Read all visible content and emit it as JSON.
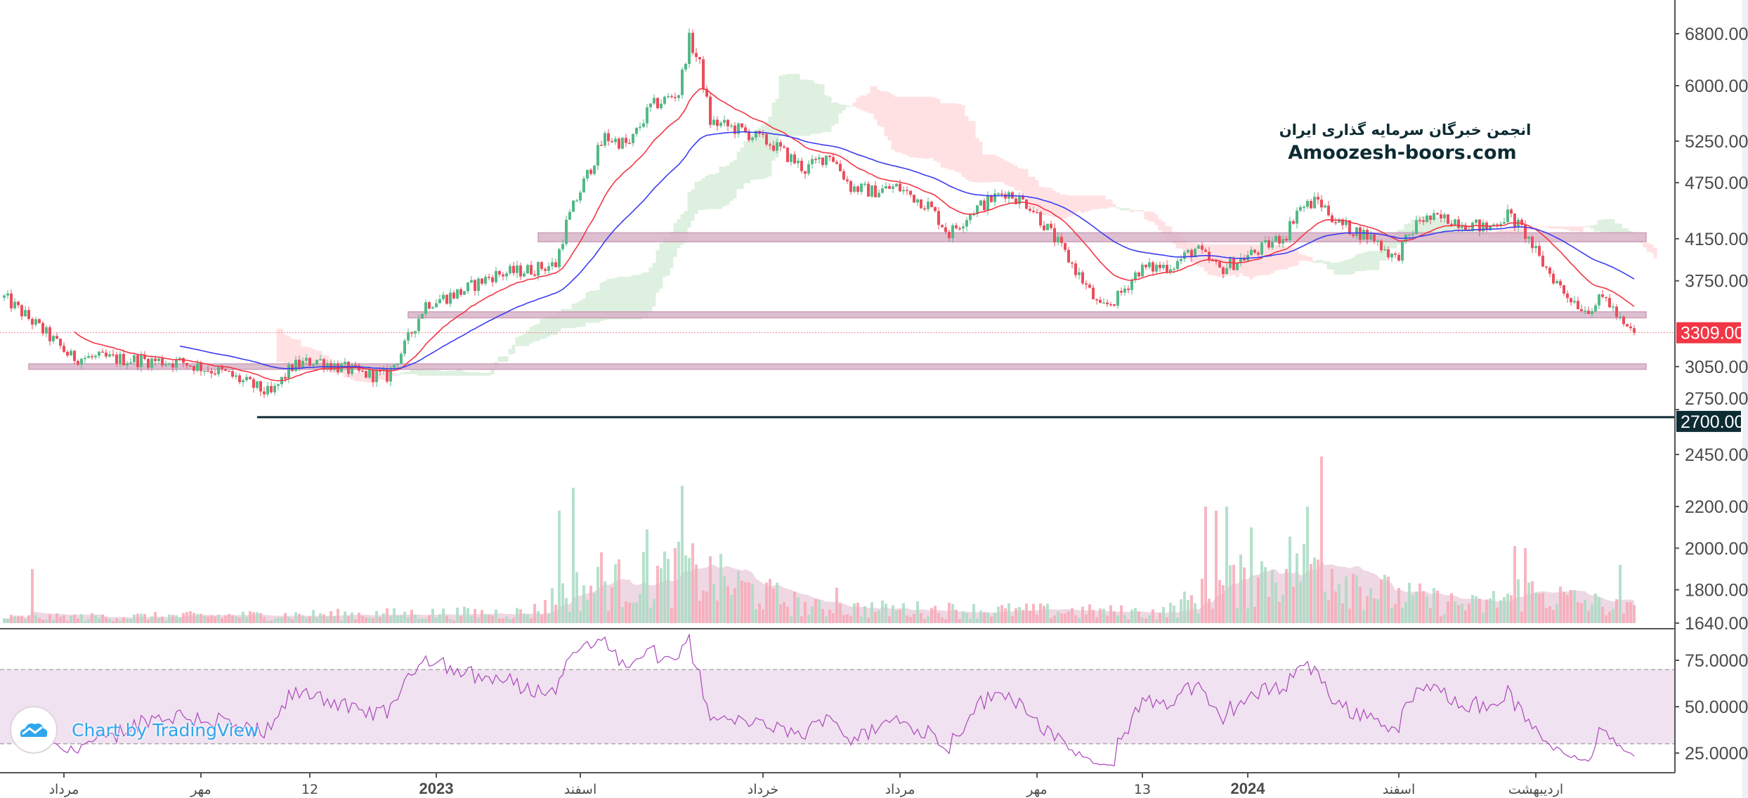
{
  "chart_data": {
    "type": "candlestick",
    "title": "",
    "scale": "log",
    "bar_count": 465,
    "price_path": [
      [
        0,
        3600
      ],
      [
        10,
        3350
      ],
      [
        19,
        3120
      ],
      [
        38,
        3100
      ],
      [
        51,
        3080
      ],
      [
        63,
        3000
      ],
      [
        76,
        2850
      ],
      [
        82,
        3050
      ],
      [
        89,
        3100
      ],
      [
        101,
        3000
      ],
      [
        109,
        2980
      ],
      [
        114,
        3200
      ],
      [
        120,
        3550
      ],
      [
        130,
        3650
      ],
      [
        139,
        3800
      ],
      [
        149,
        3850
      ],
      [
        157,
        3900
      ],
      [
        160,
        4300
      ],
      [
        165,
        4750
      ],
      [
        171,
        5300
      ],
      [
        178,
        5200
      ],
      [
        184,
        5700
      ],
      [
        192,
        5900
      ],
      [
        195,
        6700
      ],
      [
        198,
        6300
      ],
      [
        201,
        5500
      ],
      [
        209,
        5400
      ],
      [
        219,
        5200
      ],
      [
        228,
        4900
      ],
      [
        235,
        5100
      ],
      [
        241,
        4700
      ],
      [
        247,
        4650
      ],
      [
        254,
        4700
      ],
      [
        263,
        4500
      ],
      [
        269,
        4200
      ],
      [
        276,
        4450
      ],
      [
        285,
        4650
      ],
      [
        292,
        4500
      ],
      [
        298,
        4200
      ],
      [
        304,
        3900
      ],
      [
        312,
        3500
      ],
      [
        317,
        3600
      ],
      [
        323,
        3850
      ],
      [
        333,
        3900
      ],
      [
        339,
        4050
      ],
      [
        346,
        3850
      ],
      [
        352,
        3950
      ],
      [
        358,
        4050
      ],
      [
        365,
        4200
      ],
      [
        368,
        4450
      ],
      [
        374,
        4550
      ],
      [
        380,
        4300
      ],
      [
        390,
        4150
      ],
      [
        396,
        3950
      ],
      [
        403,
        4350
      ],
      [
        412,
        4350
      ],
      [
        422,
        4250
      ],
      [
        428,
        4400
      ],
      [
        433,
        4200
      ],
      [
        437,
        3950
      ],
      [
        444,
        3650
      ],
      [
        450,
        3500
      ],
      [
        456,
        3600
      ],
      [
        461,
        3350
      ],
      [
        464,
        3309
      ]
    ],
    "last_price": 3309,
    "price_ticks": [
      "6800.00",
      "6000.00",
      "5250.00",
      "4750.00",
      "4150.00",
      "3750.00",
      "3050.00",
      "2750.00"
    ],
    "price_tick_values": [
      6800,
      6000,
      5250,
      4750,
      4150,
      3750,
      3050,
      2750
    ],
    "price_range": [
      2600,
      7100
    ],
    "moving_averages": [
      {
        "name": "EMA 20",
        "color": "#f23645",
        "period": 20
      },
      {
        "name": "EMA 50",
        "color": "#3c3cf0",
        "period": 50
      }
    ],
    "ichimoku": {
      "tenkan": 9,
      "kijun": 26,
      "senkou_b": 52,
      "displacement": 26,
      "bull_color": "#c8e6c9",
      "bear_color": "#ffcdd2"
    },
    "zones": [
      {
        "low": 4120,
        "high": 4210,
        "from_bar": 152
      },
      {
        "low": 3430,
        "high": 3480,
        "from_bar": 115
      },
      {
        "low": 3030,
        "high": 3070,
        "from_bar": 7
      }
    ],
    "support_line": {
      "value": 2700,
      "label": "2700.00",
      "from_bar": 72
    },
    "last_price_label": "3309.00",
    "volume": {
      "ticks": [
        "2450.00",
        "2200.00",
        "2000.00",
        "1800.00",
        "1640.00"
      ],
      "tick_values": [
        2450,
        2200,
        2000,
        1800,
        1640
      ],
      "range": [
        1640,
        2450
      ],
      "envelope": [
        [
          0,
          1665
        ],
        [
          150,
          1690
        ],
        [
          160,
          1790
        ],
        [
          195,
          1880
        ],
        [
          230,
          1710
        ],
        [
          330,
          1690
        ],
        [
          345,
          1800
        ],
        [
          372,
          1940
        ],
        [
          395,
          1770
        ],
        [
          420,
          1720
        ],
        [
          432,
          1790
        ],
        [
          464,
          1700
        ]
      ],
      "spikes": [
        [
          8,
          1900
        ],
        [
          158,
          2180
        ],
        [
          162,
          2290
        ],
        [
          170,
          1980
        ],
        [
          183,
          2090
        ],
        [
          193,
          2300
        ],
        [
          191,
          2000
        ],
        [
          237,
          1810
        ],
        [
          342,
          2200
        ],
        [
          345,
          2180
        ],
        [
          348,
          2200
        ],
        [
          355,
          2100
        ],
        [
          371,
          2200
        ],
        [
          375,
          2440
        ],
        [
          430,
          2010
        ],
        [
          433,
          2000
        ],
        [
          460,
          1920
        ]
      ]
    },
    "rsi": {
      "period": 14,
      "ticks": [
        "75.0000",
        "50.0000",
        "25.0000"
      ],
      "tick_values": [
        75,
        50,
        25
      ],
      "upper_band": 70,
      "lower_band": 30,
      "color": "#ab47bc"
    },
    "time_labels": [
      {
        "text": "مرداد",
        "bar": 17,
        "bold": false
      },
      {
        "text": "مهر",
        "bar": 56,
        "bold": false
      },
      {
        "text": "12",
        "bar": 87,
        "bold": false
      },
      {
        "text": "2023",
        "bar": 123,
        "bold": true
      },
      {
        "text": "اسفند",
        "bar": 164,
        "bold": false
      },
      {
        "text": "خرداد",
        "bar": 216,
        "bold": false
      },
      {
        "text": "مرداد",
        "bar": 255,
        "bold": false
      },
      {
        "text": "مهر",
        "bar": 294,
        "bold": false
      },
      {
        "text": "13",
        "bar": 324,
        "bold": false
      },
      {
        "text": "2024",
        "bar": 354,
        "bold": true
      },
      {
        "text": "اسفند",
        "bar": 397,
        "bold": false
      },
      {
        "text": "اردیبهشت",
        "bar": 436,
        "bold": false
      }
    ]
  },
  "watermark": {
    "line1": "انجمن خبرگان سرمایه گذاری ایران",
    "line2": "Amoozesh-boors.com"
  },
  "branding": {
    "text": "Chart by TradingView"
  },
  "colors": {
    "up": "#53b987",
    "down": "#eb4d5c",
    "vol_up": "#a9dcc3",
    "vol_down": "#f7a9b6",
    "zone": "#d8b4c8",
    "support": "#0d2b33",
    "last": "#f23645"
  }
}
